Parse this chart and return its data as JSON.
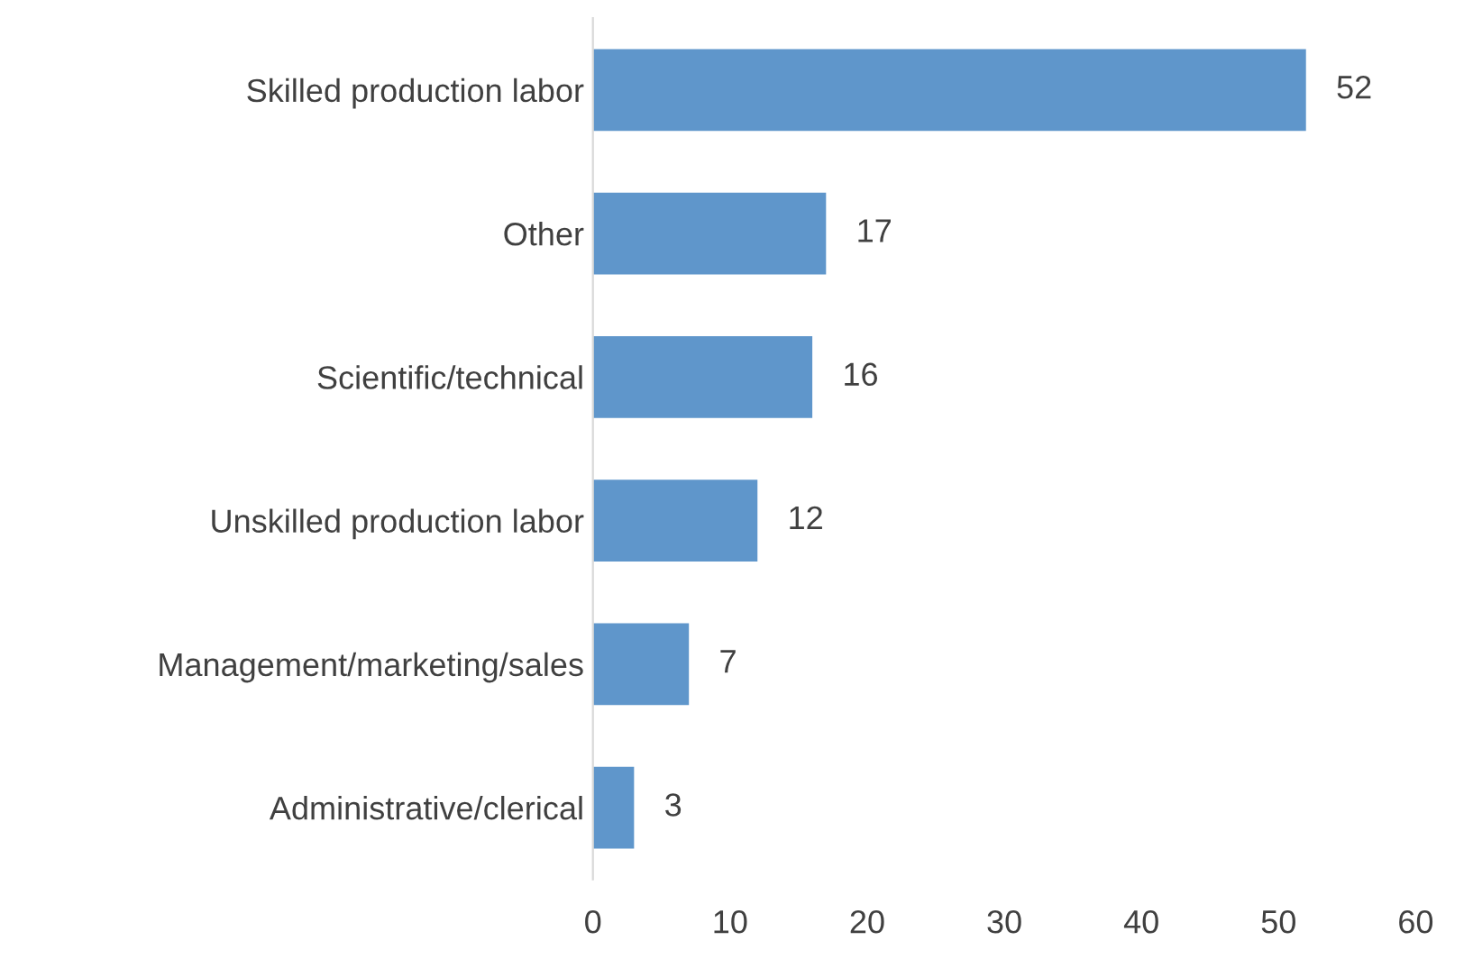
{
  "chart_data": {
    "type": "bar",
    "orientation": "horizontal",
    "categories": [
      "Skilled production labor",
      "Other",
      "Scientific/technical",
      "Unskilled production labor",
      "Management/marketing/sales",
      "Administrative/clerical"
    ],
    "values": [
      52,
      17,
      16,
      12,
      7,
      3
    ],
    "color": "#5f96cb",
    "xlim": [
      0,
      60
    ],
    "xticks": [
      0,
      10,
      20,
      30,
      40,
      50,
      60
    ],
    "data_labels": true,
    "grid": false,
    "legend": false
  }
}
